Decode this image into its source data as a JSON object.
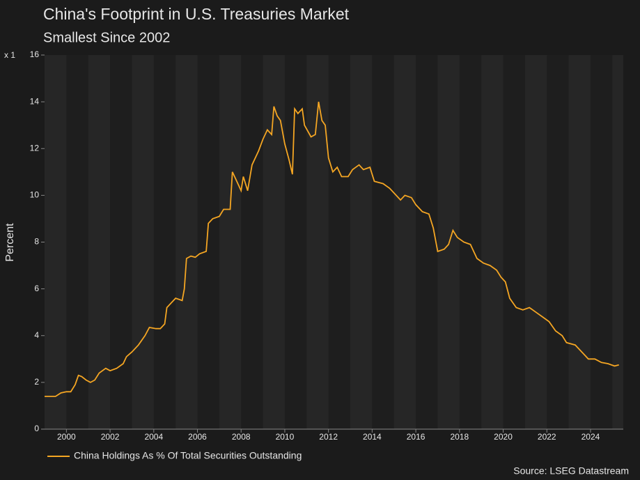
{
  "chart_data": {
    "type": "line",
    "title": "China's Footprint in U.S. Treasuries Market",
    "subtitle": "Smallest Since 2002",
    "y_axis_multiplier": "x 1",
    "y_label": "Percent",
    "source": "Source: LSEG Datastream",
    "x": [
      1999.0,
      1999.25,
      1999.5,
      1999.75,
      2000.0,
      2000.2,
      2000.4,
      2000.55,
      2000.7,
      2000.9,
      2001.1,
      2001.3,
      2001.5,
      2001.8,
      2002.0,
      2002.3,
      2002.6,
      2002.75,
      2003.0,
      2003.3,
      2003.6,
      2003.8,
      2004.1,
      2004.3,
      2004.5,
      2004.6,
      2004.8,
      2005.0,
      2005.3,
      2005.4,
      2005.5,
      2005.7,
      2005.9,
      2006.1,
      2006.4,
      2006.5,
      2006.7,
      2007.0,
      2007.2,
      2007.5,
      2007.6,
      2007.8,
      2008.0,
      2008.1,
      2008.3,
      2008.5,
      2008.8,
      2009.0,
      2009.2,
      2009.4,
      2009.5,
      2009.65,
      2009.8,
      2010.0,
      2010.2,
      2010.35,
      2010.45,
      2010.6,
      2010.8,
      2010.9,
      2011.2,
      2011.4,
      2011.55,
      2011.7,
      2011.85,
      2012.0,
      2012.2,
      2012.4,
      2012.6,
      2012.9,
      2013.1,
      2013.4,
      2013.6,
      2013.9,
      2014.1,
      2014.5,
      2014.8,
      2015.1,
      2015.3,
      2015.5,
      2015.8,
      2016.0,
      2016.3,
      2016.6,
      2016.8,
      2017.0,
      2017.3,
      2017.5,
      2017.7,
      2017.9,
      2018.2,
      2018.5,
      2018.8,
      2019.1,
      2019.4,
      2019.7,
      2019.9,
      2020.1,
      2020.3,
      2020.6,
      2020.9,
      2021.2,
      2021.5,
      2021.8,
      2022.1,
      2022.4,
      2022.7,
      2022.9,
      2023.3,
      2023.6,
      2023.9,
      2024.2,
      2024.5,
      2024.8,
      2025.1,
      2025.3
    ],
    "series": [
      {
        "name": "China Holdings As % Of Total Securities Outstanding",
        "color": "#f5a623",
        "values": [
          1.4,
          1.4,
          1.4,
          1.55,
          1.6,
          1.6,
          1.9,
          2.3,
          2.25,
          2.1,
          2.0,
          2.1,
          2.4,
          2.6,
          2.5,
          2.6,
          2.8,
          3.1,
          3.3,
          3.6,
          4.0,
          4.35,
          4.3,
          4.3,
          4.5,
          5.2,
          5.4,
          5.6,
          5.5,
          6.0,
          7.3,
          7.4,
          7.35,
          7.5,
          7.6,
          8.8,
          9.0,
          9.1,
          9.4,
          9.4,
          11.0,
          10.6,
          10.2,
          10.8,
          10.2,
          11.3,
          11.9,
          12.4,
          12.8,
          12.6,
          13.8,
          13.4,
          13.2,
          12.2,
          11.5,
          10.9,
          13.7,
          13.5,
          13.7,
          13.0,
          12.5,
          12.6,
          14.0,
          13.2,
          13.0,
          11.6,
          11.0,
          11.2,
          10.8,
          10.8,
          11.1,
          11.3,
          11.1,
          11.2,
          10.6,
          10.5,
          10.3,
          10.0,
          9.8,
          10.0,
          9.9,
          9.6,
          9.3,
          9.2,
          8.6,
          7.6,
          7.7,
          7.9,
          8.5,
          8.2,
          8.0,
          7.9,
          7.3,
          7.1,
          7.0,
          6.8,
          6.5,
          6.3,
          5.6,
          5.2,
          5.1,
          5.2,
          5.0,
          4.8,
          4.6,
          4.2,
          4.0,
          3.7,
          3.6,
          3.3,
          3.0,
          3.0,
          2.85,
          2.8,
          2.7,
          2.75
        ]
      }
    ],
    "xlim": [
      1999.0,
      2025.5
    ],
    "xticks": [
      2000,
      2002,
      2004,
      2006,
      2008,
      2010,
      2012,
      2014,
      2016,
      2018,
      2020,
      2022,
      2024
    ],
    "ylim": [
      0,
      16
    ],
    "yticks": [
      0,
      2,
      4,
      6,
      8,
      10,
      12,
      14,
      16
    ],
    "legend": "bottom-left"
  }
}
